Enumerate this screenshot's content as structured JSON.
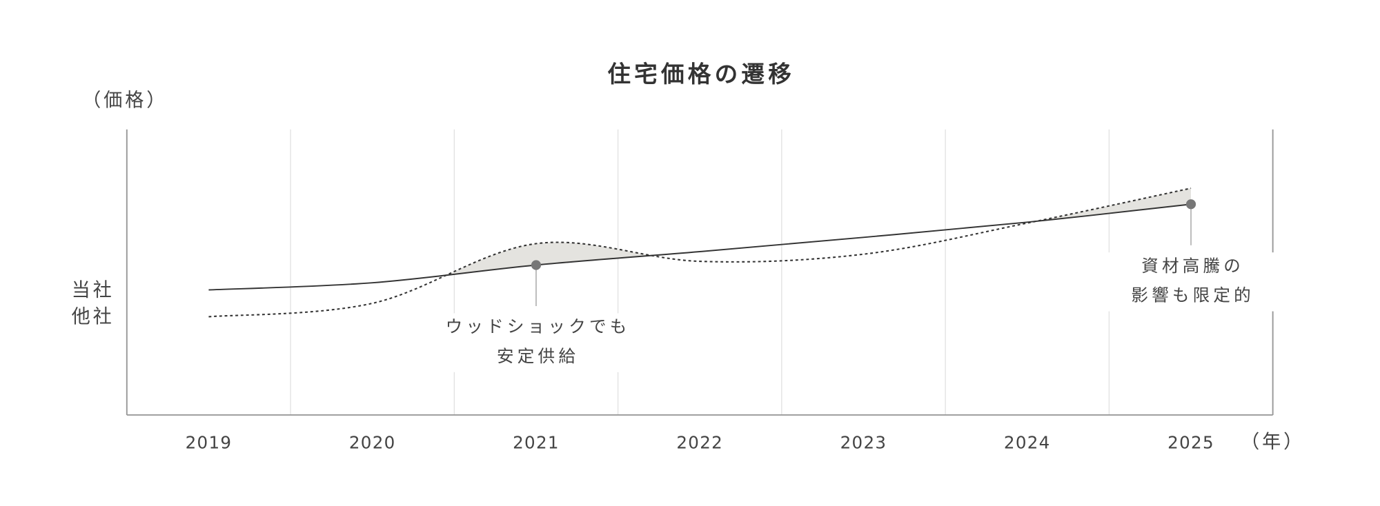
{
  "chart_data": {
    "type": "line",
    "title": "住宅価格の遷移",
    "y_label": "（価格）",
    "x_label": "（年）",
    "categories": [
      "2019",
      "2020",
      "2021",
      "2022",
      "2023",
      "2024",
      "2025"
    ],
    "ylim": [
      0,
      100
    ],
    "series": [
      {
        "name": "当社",
        "color": "#333333",
        "style": "solid",
        "values": [
          43.8,
          46.3,
          52.5,
          57.2,
          62.2,
          67.5,
          73.8
        ]
      },
      {
        "name": "他社",
        "color": "#333333",
        "style": "dotted",
        "values": [
          34.4,
          39.1,
          60.0,
          53.8,
          56.3,
          67.2,
          79.4
        ]
      }
    ],
    "fill_color": "#e4e3df",
    "annotations": [
      {
        "series": 0,
        "index": 2,
        "lines": [
          "ウッドショックでも",
          "安定供給"
        ]
      },
      {
        "series": 0,
        "index": 6,
        "lines": [
          "資材高騰の",
          "影響も限定的"
        ]
      }
    ]
  }
}
